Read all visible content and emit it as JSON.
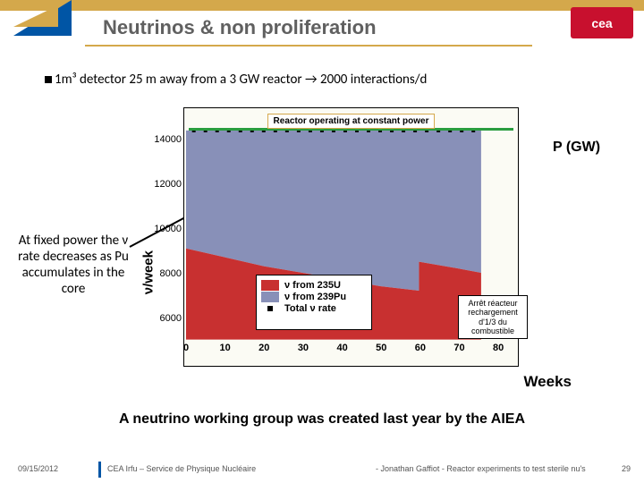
{
  "header": {
    "title": "Neutrinos & non proliferation",
    "right_logo": "cea",
    "gold": "#d4a84b",
    "logo_red": "#c8102e"
  },
  "bullet": "1m³ detector 25 m away from a 3 GW reactor → 2000 interactions/d",
  "left_note": "At fixed power the ν rate decreases as Pu accumulates in the core",
  "right_note": "Arrêt réacteur rechargement d'1/3 du combustible",
  "p_gw_label": "P (GW)",
  "bottom_statement": "A neutrino working group was created last year by the AIEA",
  "chart": {
    "type": "stacked-area",
    "top_annotation": "Reactor operating at constant power",
    "ylabel": "ν/week",
    "xlabel": "Weeks",
    "background": "#fbfbf4",
    "x_range": [
      0,
      85
    ],
    "y_range": [
      5000,
      15000
    ],
    "xticks": [
      0,
      10,
      20,
      30,
      40,
      50,
      60,
      70,
      80
    ],
    "yticks": [
      6000,
      8000,
      10000,
      12000,
      14000
    ],
    "colors": {
      "u235": "#c83030",
      "pu239": "#8890b8",
      "total_marker": "#000000",
      "green_line": "#2a9d3f"
    },
    "legend": [
      {
        "swatch": "#c83030",
        "label": "ν from 235U"
      },
      {
        "swatch": "#8890b8",
        "label": "ν from 239Pu"
      },
      {
        "swatch_marker": true,
        "label": "Total ν rate"
      }
    ],
    "total_band_top": 14400,
    "u235_top": [
      [
        0,
        9100
      ],
      [
        10,
        8700
      ],
      [
        20,
        8300
      ],
      [
        30,
        8000
      ],
      [
        40,
        7700
      ],
      [
        50,
        7400
      ],
      [
        60,
        7200
      ],
      [
        60,
        8500
      ],
      [
        70,
        8200
      ],
      [
        76,
        8000
      ]
    ],
    "stop_x": 76
  },
  "footer": {
    "date": "09/15/2012",
    "mid": "CEA Irfu – Service de Physique Nucléaire",
    "right1": "- Jonathan Gaffiot - Reactor experiments to test sterile nu's",
    "page": "29"
  }
}
